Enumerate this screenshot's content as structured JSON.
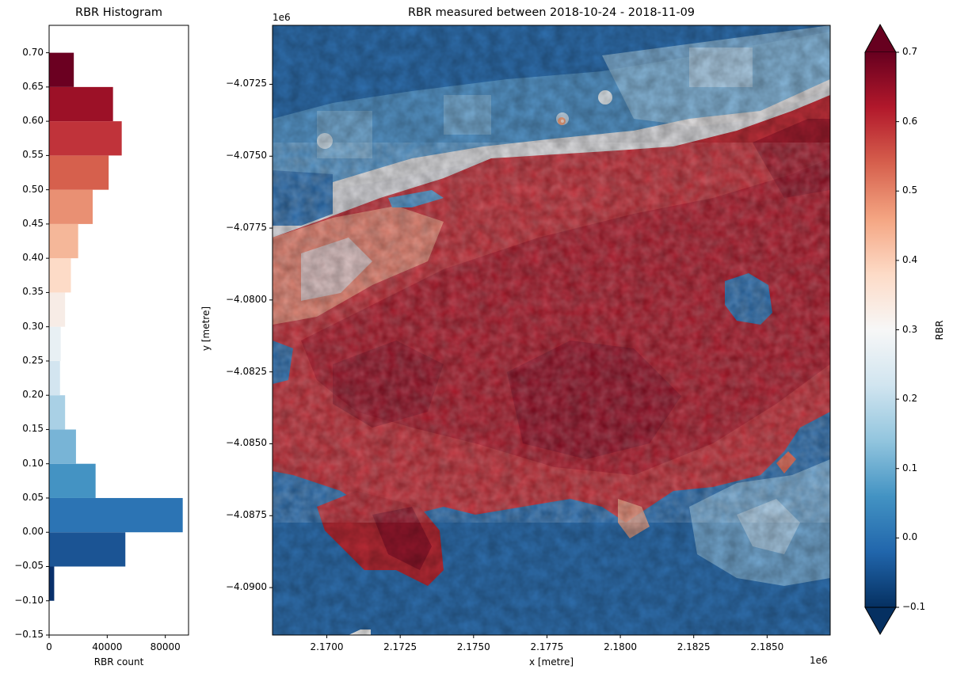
{
  "figure": {
    "histogram": {
      "title": "RBR Histogram",
      "xlabel": "RBR count",
      "x_ticks": [
        "0",
        "40000",
        "80000"
      ],
      "y_ticks": [
        "0.70",
        "0.65",
        "0.60",
        "0.55",
        "0.50",
        "0.45",
        "0.40",
        "0.35",
        "0.30",
        "0.25",
        "0.20",
        "0.15",
        "0.10",
        "0.05",
        "0.00",
        "−0.05",
        "−0.10",
        "−0.15"
      ]
    },
    "map": {
      "title": "RBR measured between 2018-10-24 - 2018-11-09",
      "xlabel": "x [metre]",
      "ylabel": "y [metre]",
      "x_offset": "1e6",
      "y_offset": "1e6",
      "x_ticks": [
        "2.1700",
        "2.1725",
        "2.1750",
        "2.1775",
        "2.1800",
        "2.1825",
        "2.1850"
      ],
      "y_ticks": [
        "−4.0725",
        "−4.0750",
        "−4.0775",
        "−4.0800",
        "−4.0825",
        "−4.0850",
        "−4.0875",
        "−4.0900"
      ]
    },
    "colorbar": {
      "label": "RBR",
      "ticks": [
        "0.7",
        "0.6",
        "0.5",
        "0.4",
        "0.3",
        "0.2",
        "0.1",
        "0.0",
        "−0.1"
      ],
      "extend": "both",
      "cmap": "RdBu_r"
    }
  },
  "chart_data": [
    {
      "type": "bar",
      "orientation": "horizontal",
      "title": "RBR Histogram",
      "xlabel": "RBR count",
      "ylabel": "",
      "xlim": [
        0,
        96000
      ],
      "ylim": [
        -0.15,
        0.74
      ],
      "bin_edges": [
        -0.1,
        -0.05,
        0.0,
        0.05,
        0.1,
        0.15,
        0.2,
        0.25,
        0.3,
        0.35,
        0.4,
        0.45,
        0.5,
        0.55,
        0.6,
        0.65,
        0.7
      ],
      "categories": [
        "-0.10–-0.05",
        "-0.05–0.00",
        "0.00–0.05",
        "0.05–0.10",
        "0.10–0.15",
        "0.15–0.20",
        "0.20–0.25",
        "0.25–0.30",
        "0.30–0.35",
        "0.35–0.40",
        "0.40–0.45",
        "0.45–0.50",
        "0.50–0.55",
        "0.55–0.60",
        "0.60–0.65",
        "0.65–0.70"
      ],
      "values": [
        3500,
        52500,
        92000,
        32000,
        18500,
        11000,
        7500,
        8000,
        11000,
        15000,
        20000,
        30000,
        41000,
        50000,
        44000,
        17000
      ],
      "colors": [
        "#08306b",
        "#1b5494",
        "#2c74b4",
        "#4493c3",
        "#78b4d6",
        "#a9d0e5",
        "#d3e5f0",
        "#e8f0f4",
        "#f7ece6",
        "#fddbc7",
        "#f5b799",
        "#e99073",
        "#d6604d",
        "#c0333a",
        "#9c1127",
        "#6b0021"
      ],
      "grid": false
    },
    {
      "type": "heatmap",
      "title": "RBR measured between 2018-10-24 - 2018-11-09",
      "xlabel": "x [metre]",
      "ylabel": "y [metre]",
      "x_scale_offset": "1e6",
      "y_scale_offset": "1e6",
      "xlim": [
        2.16815,
        2.18715
      ],
      "ylim": [
        -4.09165,
        -4.07045
      ],
      "x_ticks": [
        2.17,
        2.1725,
        2.175,
        2.1775,
        2.18,
        2.1825,
        2.185
      ],
      "y_ticks": [
        -4.0725,
        -4.075,
        -4.0775,
        -4.08,
        -4.0825,
        -4.085,
        -4.0875,
        -4.09
      ],
      "colorbar": {
        "label": "RBR",
        "vmin": -0.1,
        "vmax": 0.7,
        "cmap": "RdBu_r",
        "extend": "both",
        "ticks": [
          -0.1,
          0.0,
          0.1,
          0.2,
          0.3,
          0.4,
          0.5,
          0.6,
          0.7
        ]
      },
      "description": "Burn severity raster: high RBR (red, ~0.5-0.7) across a diagonal burned band through the centre; low RBR (blue, ~0-0.05) in unburned areas north and south; lighter blue agricultural patches in north and south-east."
    }
  ]
}
